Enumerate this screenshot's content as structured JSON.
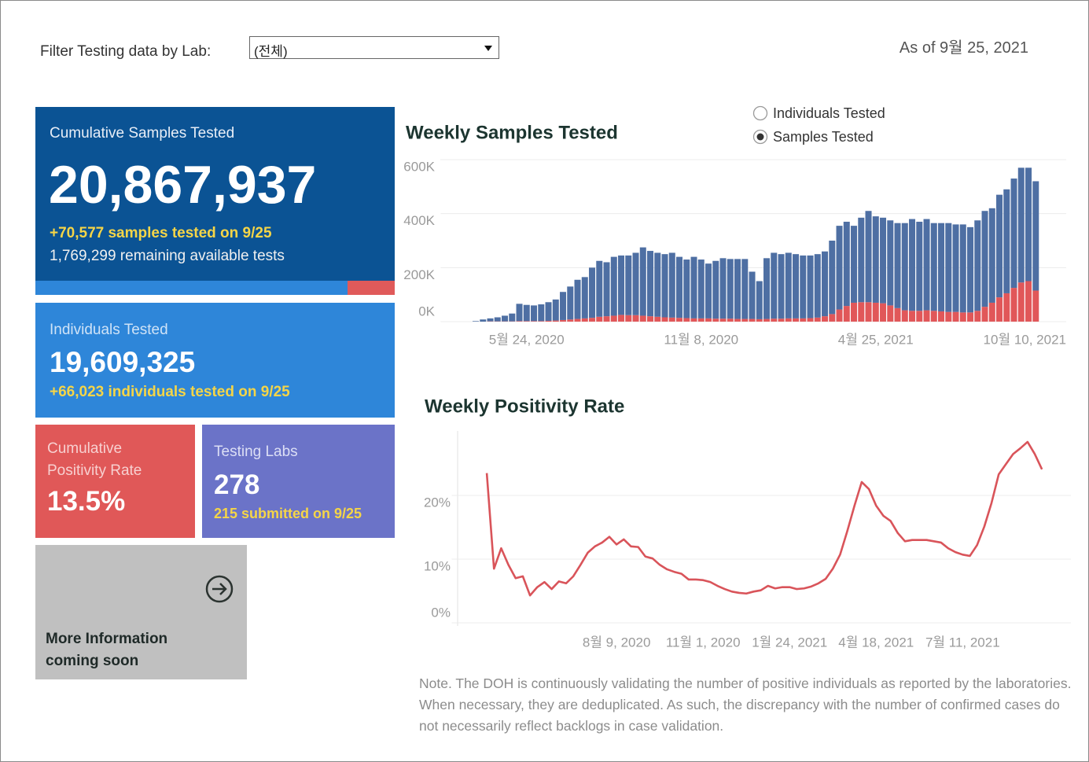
{
  "header": {
    "filter_label": "Filter Testing data by Lab:",
    "filter_value": "(전체)",
    "as_of": "As of 9월 25, 2021"
  },
  "kpis": {
    "samples": {
      "title": "Cumulative Samples Tested",
      "value": "20,867,937",
      "delta": "+70,577 samples tested on 9/25",
      "remaining": "1,769,299 remaining available tests"
    },
    "individuals": {
      "title": "Individuals Tested",
      "value": "19,609,325",
      "delta": "+66,023  individuals  tested on 9/25"
    },
    "positivity": {
      "title": "Cumulative Positivity Rate",
      "value": "13.5%"
    },
    "labs": {
      "title": "Testing Labs",
      "value": "278",
      "delta": "215 submitted on 9/25"
    },
    "more_info": {
      "text": "More Information coming soon"
    }
  },
  "toggle": {
    "options": [
      "Individuals Tested",
      "Samples Tested"
    ],
    "selected": 1
  },
  "chart_data": [
    {
      "type": "bar",
      "title": "Weekly Samples Tested",
      "stacked": true,
      "grid": true,
      "categories": [
        null,
        null,
        null,
        null,
        null,
        null,
        null,
        "5월 24, 2020",
        null,
        null,
        null,
        null,
        null,
        null,
        null,
        null,
        null,
        null,
        null,
        null,
        null,
        null,
        null,
        null,
        null,
        null,
        null,
        null,
        null,
        null,
        null,
        "11월 8, 2020",
        null,
        null,
        null,
        null,
        null,
        null,
        null,
        null,
        null,
        null,
        null,
        null,
        null,
        null,
        null,
        null,
        null,
        null,
        null,
        null,
        null,
        null,
        null,
        "4월 25, 2021",
        null,
        null,
        null,
        null,
        null,
        null,
        null,
        null,
        null,
        null,
        null,
        null,
        null,
        null,
        null,
        null,
        null,
        null,
        null,
        null,
        null,
        "10월 10, 2021"
      ],
      "series": [
        {
          "color": "#e15759",
          "values": [
            0,
            0,
            1000,
            1000,
            1000,
            1000,
            2000,
            2000,
            2000,
            2000,
            3000,
            4000,
            6000,
            8000,
            10000,
            12000,
            14000,
            18000,
            20000,
            22000,
            25000,
            24000,
            24000,
            22000,
            20000,
            18000,
            16000,
            15000,
            14000,
            13000,
            12000,
            12000,
            12000,
            11000,
            11000,
            11000,
            10000,
            10000,
            10000,
            9000,
            10000,
            11000,
            11000,
            12000,
            12000,
            12000,
            13000,
            15000,
            20000,
            28000,
            45000,
            58000,
            70000,
            72000,
            72000,
            70000,
            68000,
            60000,
            50000,
            42000,
            40000,
            40000,
            42000,
            40000,
            38000,
            36000,
            36000,
            34000,
            34000,
            40000,
            55000,
            70000,
            90000,
            105000,
            125000,
            145000,
            150000,
            115000
          ]
        },
        {
          "color": "#4e6fa3",
          "values": [
            2000,
            8000,
            11000,
            15000,
            21000,
            29000,
            64000,
            60000,
            58000,
            62000,
            69000,
            78000,
            104000,
            122000,
            145000,
            153000,
            186000,
            207000,
            200000,
            218000,
            220000,
            221000,
            231000,
            253000,
            242000,
            237000,
            234000,
            240000,
            226000,
            217000,
            228000,
            218000,
            203000,
            214000,
            224000,
            221000,
            222000,
            222000,
            175000,
            141000,
            225000,
            244000,
            239000,
            243000,
            238000,
            233000,
            232000,
            235000,
            240000,
            272000,
            310000,
            312000,
            285000,
            313000,
            338000,
            320000,
            317000,
            315000,
            315000,
            323000,
            340000,
            330000,
            338000,
            325000,
            327000,
            329000,
            324000,
            326000,
            316000,
            335000,
            355000,
            350000,
            380000,
            385000,
            405000,
            425000,
            420000,
            405000
          ]
        }
      ],
      "ylim": [
        0,
        600000
      ],
      "yticks": [
        {
          "value": 0,
          "label": "0K"
        },
        {
          "value": 200000,
          "label": "200K"
        },
        {
          "value": 400000,
          "label": "400K"
        },
        {
          "value": 600000,
          "label": "600K"
        }
      ]
    },
    {
      "type": "line",
      "title": "Weekly Positivity Rate",
      "grid": true,
      "categories": [
        null,
        null,
        null,
        null,
        null,
        null,
        null,
        null,
        null,
        null,
        null,
        null,
        null,
        null,
        null,
        null,
        null,
        null,
        "8월 9, 2020",
        null,
        null,
        null,
        null,
        null,
        null,
        null,
        null,
        null,
        null,
        null,
        "11월 1, 2020",
        null,
        null,
        null,
        null,
        null,
        null,
        null,
        null,
        null,
        null,
        null,
        "1월 24, 2021",
        null,
        null,
        null,
        null,
        null,
        null,
        null,
        null,
        null,
        null,
        null,
        "4월 18, 2021",
        null,
        null,
        null,
        null,
        null,
        null,
        null,
        null,
        null,
        null,
        null,
        "7월 11, 2021",
        null,
        null,
        null,
        null,
        null,
        null,
        null,
        null,
        null,
        null,
        null
      ],
      "series": [
        {
          "color": "#d9545a",
          "values": [
            23.5,
            8.5,
            11.7,
            9.1,
            7.0,
            7.3,
            4.3,
            5.6,
            6.4,
            5.3,
            6.5,
            6.2,
            7.3,
            9.1,
            11.0,
            12.0,
            12.6,
            13.5,
            12.3,
            13.1,
            12.0,
            11.9,
            10.4,
            10.1,
            9.1,
            8.4,
            8.0,
            7.7,
            6.8,
            6.8,
            6.7,
            6.4,
            5.8,
            5.3,
            4.9,
            4.7,
            4.6,
            4.9,
            5.1,
            5.8,
            5.4,
            5.6,
            5.6,
            5.3,
            5.4,
            5.7,
            6.2,
            6.9,
            8.5,
            10.7,
            14.4,
            18.4,
            22.1,
            21.0,
            18.4,
            16.8,
            16.0,
            14.1,
            12.8,
            13.0,
            13.0,
            13.0,
            12.8,
            12.6,
            11.7,
            11.1,
            10.7,
            10.5,
            12.2,
            15.1,
            18.8,
            23.3,
            24.9,
            26.5,
            27.4,
            28.4,
            26.5,
            24.1
          ]
        }
      ],
      "ylim": [
        0,
        30
      ],
      "yticks": [
        {
          "value": 0,
          "label": "0%"
        },
        {
          "value": 10,
          "label": "10%"
        },
        {
          "value": 20,
          "label": "20%"
        }
      ]
    }
  ],
  "note": "Note. The DOH is continuously validating the number of positive individuals as reported by the laboratories. When necessary, they are deduplicated. As such, the discrepancy with the number of confirmed cases do not necessarily reflect backlogs in case validation."
}
